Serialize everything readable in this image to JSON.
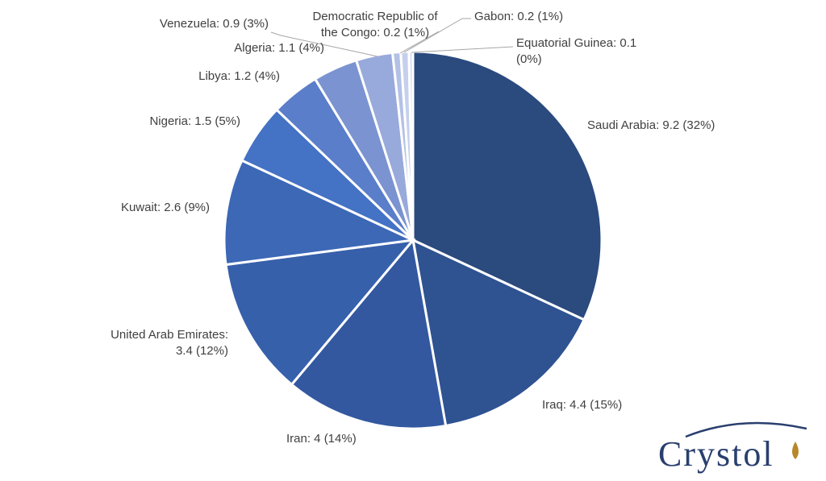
{
  "chart_data": {
    "type": "pie",
    "title": "",
    "slices": [
      {
        "name": "Saudi Arabia",
        "value": 9.2,
        "label_line1": "Saudi Arabia: 9.2 (32%)",
        "label_line2": "",
        "color": "#2b4a7e"
      },
      {
        "name": "Iraq",
        "value": 4.4,
        "label_line1": "Iraq: 4.4 (15%)",
        "label_line2": "",
        "color": "#2f5291"
      },
      {
        "name": "Iran",
        "value": 4.0,
        "label_line1": "Iran: 4 (14%)",
        "label_line2": "",
        "color": "#3358a0"
      },
      {
        "name": "United Arab Emirates",
        "value": 3.4,
        "label_line1": "United Arab Emirates:",
        "label_line2": "3.4 (12%)",
        "color": "#3760ab"
      },
      {
        "name": "Kuwait",
        "value": 2.6,
        "label_line1": "Kuwait: 2.6 (9%)",
        "label_line2": "",
        "color": "#3c68b6"
      },
      {
        "name": "Nigeria",
        "value": 1.5,
        "label_line1": "Nigeria: 1.5 (5%)",
        "label_line2": "",
        "color": "#4472c4"
      },
      {
        "name": "Libya",
        "value": 1.2,
        "label_line1": "Libya: 1.2 (4%)",
        "label_line2": "",
        "color": "#5a7ec9"
      },
      {
        "name": "Algeria",
        "value": 1.1,
        "label_line1": "Algeria: 1.1 (4%)",
        "label_line2": "",
        "color": "#7b93d0"
      },
      {
        "name": "Venezuela",
        "value": 0.9,
        "label_line1": "Venezuela: 0.9 (3%)",
        "label_line2": "",
        "color": "#98a9db"
      },
      {
        "name": "Democratic Republic of the Congo",
        "value": 0.2,
        "label_line1": "Democratic Republic of",
        "label_line2": "the Congo: 0.2 (1%)",
        "color": "#b3c1e6"
      },
      {
        "name": "Gabon",
        "value": 0.2,
        "label_line1": "Gabon: 0.2 (1%)",
        "label_line2": "",
        "color": "#c5d0ec"
      },
      {
        "name": "Equatorial Guinea",
        "value": 0.1,
        "label_line1": "Equatorial Guinea: 0.1",
        "label_line2": "(0%)",
        "color": "#d5ddf2"
      }
    ],
    "legend": "none",
    "label_color": "#404040",
    "leader_color": "#a6a6a6"
  },
  "branding": {
    "logo_text": "Crystol",
    "logo_color": "#2a3f6e",
    "logo_drop_color": "#b8862b"
  }
}
